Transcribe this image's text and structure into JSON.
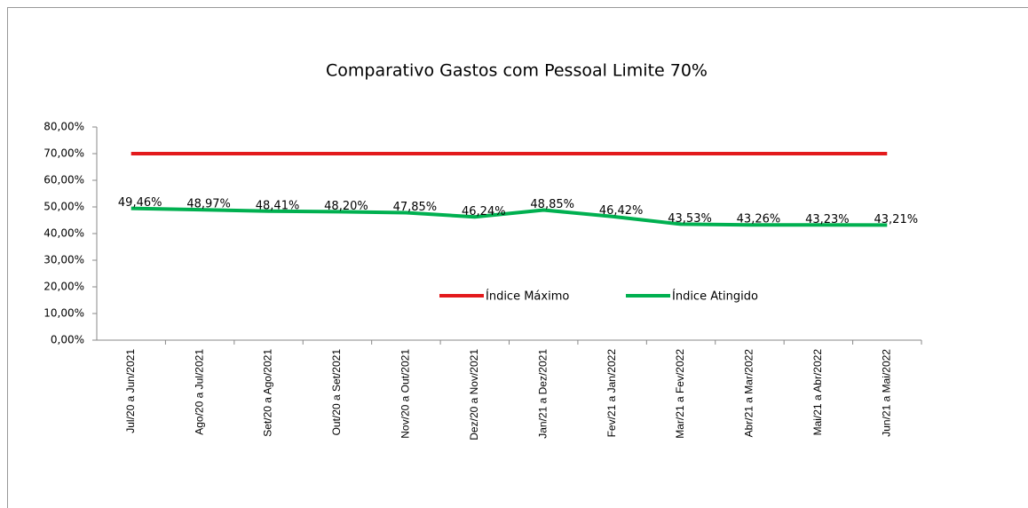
{
  "chart_data": {
    "type": "line",
    "title": "Comparativo Gastos com Pessoal Limite 70%",
    "categories": [
      "Jul/20 a Jun/2021",
      "Ago/20 a Jul/2021",
      "Set/20 a Ago/2021",
      "Out/20 a Set/2021",
      "Nov/20 a Out/2021",
      "Dez/20 a Nov/2021",
      "Jan/21 a Dez/2021",
      "Fev/21 a Jan/2022",
      "Mar/21 a Fev/2022",
      "Abr/21 a Mar/2022",
      "Mai/21 a Abr/2022",
      "Jun/21 a Mai/2022"
    ],
    "series": [
      {
        "name": "Índice Máximo",
        "color": "#e31a1c",
        "values": [
          70,
          70,
          70,
          70,
          70,
          70,
          70,
          70,
          70,
          70,
          70,
          70
        ]
      },
      {
        "name": "Índice Atingido",
        "color": "#00b050",
        "values": [
          49.46,
          48.97,
          48.41,
          48.2,
          47.85,
          46.24,
          48.85,
          46.42,
          43.53,
          43.26,
          43.23,
          43.21
        ],
        "value_labels": [
          "49,46%",
          "48,97%",
          "48,41%",
          "48,20%",
          "47,85%",
          "46,24%",
          "48,85%",
          "46,42%",
          "43,53%",
          "43,26%",
          "43,23%",
          "43,21%"
        ]
      }
    ],
    "ylim": [
      0,
      80
    ],
    "yticks": [
      {
        "value": 0,
        "label": "0,00%"
      },
      {
        "value": 10,
        "label": "10,00%"
      },
      {
        "value": 20,
        "label": "20,00%"
      },
      {
        "value": 30,
        "label": "30,00%"
      },
      {
        "value": 40,
        "label": "40,00%"
      },
      {
        "value": 50,
        "label": "50,00%"
      },
      {
        "value": 60,
        "label": "60,00%"
      },
      {
        "value": 70,
        "label": "70,00%"
      },
      {
        "value": 80,
        "label": "80,00%"
      }
    ],
    "legend": "center"
  }
}
